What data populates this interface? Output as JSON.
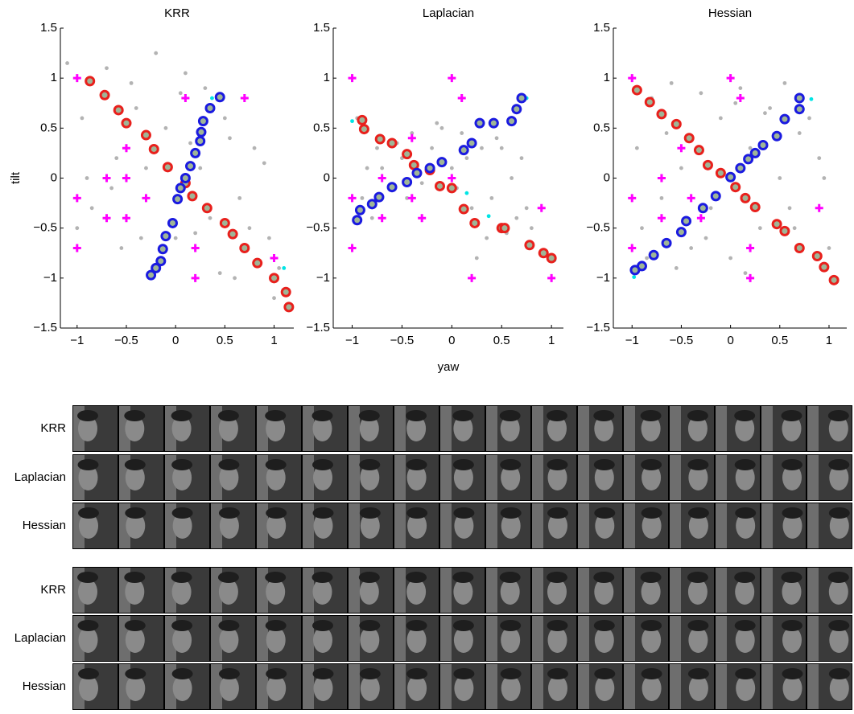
{
  "chart_data": [
    {
      "type": "scatter",
      "title": "KRR",
      "ylabel": "tilt",
      "xlim": [
        -1.17,
        1.2
      ],
      "ylim": [
        -1.5,
        1.5
      ],
      "xticks": [
        {
          "value": -1,
          "label": "−1"
        },
        {
          "value": -0.5,
          "label": "−0.5"
        },
        0,
        0.5,
        1
      ],
      "yticks": [
        {
          "value": -1.5,
          "label": "−1.5"
        },
        {
          "value": -1,
          "label": "−1"
        },
        {
          "value": -0.5,
          "label": "−0.5"
        },
        0,
        0.5,
        1,
        1.5
      ],
      "series": [
        {
          "marker": "dot",
          "color": "#b3b3b3",
          "x": [
            -1.1,
            -0.95,
            -0.85,
            -0.7,
            -0.6,
            -0.45,
            -0.35,
            -0.2,
            -0.1,
            0.0,
            0.1,
            0.25,
            0.35,
            0.5,
            0.65,
            0.8,
            0.95,
            1.05,
            -0.9,
            -0.65,
            -0.4,
            -0.15,
            0.05,
            0.3,
            0.55,
            0.75,
            0.9,
            -1.0,
            -0.3,
            0.2,
            0.6,
            1.0,
            -0.55,
            0.15,
            0.45
          ],
          "values": [
            1.15,
            0.6,
            -0.3,
            1.1,
            0.2,
            0.95,
            -0.6,
            1.25,
            0.5,
            -0.6,
            1.05,
            0.1,
            -0.4,
            0.6,
            -0.2,
            0.3,
            -0.6,
            -0.9,
            0.0,
            -0.1,
            0.7,
            -0.85,
            0.85,
            0.9,
            0.4,
            -0.5,
            0.15,
            -0.5,
            0.1,
            -0.55,
            -1.0,
            -1.2,
            -0.7,
            0.35,
            -0.95
          ]
        },
        {
          "marker": "plus",
          "color": "#ff00ff",
          "x": [
            -1,
            0.1,
            0.7,
            -0.5,
            -1,
            -0.3,
            -0.5,
            -0.7,
            -0.7,
            -0.5,
            -1,
            0.2,
            0.2,
            1
          ],
          "values": [
            1,
            0.8,
            0.8,
            0.3,
            -0.2,
            -0.2,
            0,
            0,
            -0.4,
            -0.4,
            -0.7,
            -0.7,
            -1,
            -0.8
          ]
        },
        {
          "marker": "dot",
          "color": "#00e5e5",
          "x": [
            0.37,
            1.1
          ],
          "values": [
            0.8,
            -0.9
          ]
        },
        {
          "marker": "circle",
          "color": "#e8201c",
          "x": [
            -0.87,
            -0.72,
            -0.58,
            -0.5,
            -0.3,
            -0.22,
            -0.08,
            0.1,
            0.17,
            0.32,
            0.5,
            0.58,
            0.7,
            0.83,
            1.0,
            1.12,
            1.15
          ],
          "values": [
            0.97,
            0.83,
            0.68,
            0.55,
            0.43,
            0.29,
            0.11,
            -0.05,
            -0.18,
            -0.3,
            -0.45,
            -0.56,
            -0.7,
            -0.85,
            -1.0,
            -1.14,
            -1.29
          ]
        },
        {
          "marker": "circle",
          "color": "#1a1ae0",
          "x": [
            0.45,
            0.35,
            0.28,
            0.26,
            0.25,
            0.2,
            0.15,
            0.1,
            0.05,
            0.02,
            -0.03,
            -0.1,
            -0.13,
            -0.15,
            -0.2,
            -0.25
          ],
          "values": [
            0.81,
            0.7,
            0.57,
            0.46,
            0.37,
            0.25,
            0.12,
            0.0,
            -0.1,
            -0.21,
            -0.45,
            -0.58,
            -0.71,
            -0.83,
            -0.9,
            -0.97
          ]
        }
      ]
    },
    {
      "type": "scatter",
      "title": "Laplacian",
      "xlabel": "yaw",
      "xlim": [
        -1.19,
        1.12
      ],
      "ylim": [
        -1.5,
        1.5
      ],
      "xticks": [
        {
          "value": -1,
          "label": "−1"
        },
        {
          "value": -0.5,
          "label": "−0.5"
        },
        0,
        0.5,
        1
      ],
      "yticks": [
        {
          "value": -1.5,
          "label": "−1.5"
        },
        {
          "value": -1,
          "label": "−1"
        },
        {
          "value": -0.5,
          "label": "−0.5"
        },
        0,
        0.5,
        1,
        1.5
      ],
      "series": [
        {
          "marker": "dot",
          "color": "#b3b3b3",
          "x": [
            -0.95,
            -0.9,
            -0.85,
            -0.75,
            -0.6,
            -0.5,
            -0.4,
            -0.3,
            -0.2,
            -0.1,
            0.0,
            0.1,
            0.2,
            0.3,
            0.4,
            0.5,
            0.6,
            0.7,
            0.75,
            0.8,
            -0.7,
            -0.45,
            -0.15,
            0.15,
            0.45,
            0.65,
            -0.8,
            0.05,
            0.35,
            0.55,
            0.25,
            -0.55
          ],
          "values": [
            0.6,
            -0.2,
            0.1,
            0.3,
            -0.1,
            0.2,
            0.45,
            -0.05,
            0.3,
            0.5,
            0.1,
            0.45,
            -0.3,
            0.3,
            -0.2,
            0.3,
            0.0,
            0.2,
            -0.3,
            -0.5,
            0.1,
            -0.2,
            0.55,
            0.2,
            0.4,
            -0.4,
            -0.4,
            -0.1,
            -0.6,
            -0.55,
            -0.8,
            0.35
          ]
        },
        {
          "marker": "plus",
          "color": "#ff00ff",
          "x": [
            -1,
            0,
            0.1,
            -0.4,
            -0.7,
            0,
            -0.4,
            -1,
            -0.7,
            -0.3,
            -1,
            0.2,
            1,
            0.9
          ],
          "values": [
            1,
            1,
            0.8,
            0.4,
            0,
            0,
            -0.2,
            -0.2,
            -0.4,
            -0.4,
            -0.7,
            -1,
            -1,
            -0.3
          ]
        },
        {
          "marker": "dot",
          "color": "#00e5e5",
          "x": [
            -1.0,
            0.15,
            0.37,
            0.75,
            1.03
          ],
          "values": [
            0.57,
            -0.15,
            -0.38,
            0.8,
            -0.82
          ]
        },
        {
          "marker": "circle",
          "color": "#e8201c",
          "x": [
            -0.9,
            -0.88,
            -0.72,
            -0.6,
            -0.45,
            -0.38,
            -0.22,
            -0.12,
            0.0,
            0.12,
            0.23,
            0.5,
            0.53,
            0.78,
            0.92,
            1.0
          ],
          "values": [
            0.58,
            0.49,
            0.39,
            0.35,
            0.24,
            0.13,
            0.08,
            -0.08,
            -0.1,
            -0.31,
            -0.45,
            -0.5,
            -0.5,
            -0.67,
            -0.75,
            -0.8
          ]
        },
        {
          "marker": "circle",
          "color": "#1a1ae0",
          "x": [
            0.7,
            0.65,
            0.6,
            0.42,
            0.28,
            0.2,
            0.12,
            -0.1,
            -0.22,
            -0.35,
            -0.45,
            -0.6,
            -0.73,
            -0.8,
            -0.92,
            -0.95
          ],
          "values": [
            0.8,
            0.69,
            0.57,
            0.55,
            0.55,
            0.35,
            0.28,
            0.16,
            0.1,
            0.05,
            -0.04,
            -0.09,
            -0.19,
            -0.26,
            -0.32,
            -0.42
          ]
        }
      ]
    },
    {
      "type": "scatter",
      "title": "Hessian",
      "xlim": [
        -1.19,
        1.18
      ],
      "ylim": [
        -1.5,
        1.5
      ],
      "xticks": [
        {
          "value": -1,
          "label": "−1"
        },
        {
          "value": -0.5,
          "label": "−0.5"
        },
        0,
        0.5,
        1
      ],
      "yticks": [
        {
          "value": -1.5,
          "label": "−1.5"
        },
        {
          "value": -1,
          "label": "−1"
        },
        {
          "value": -0.5,
          "label": "−0.5"
        },
        0,
        0.5,
        1,
        1.5
      ],
      "series": [
        {
          "marker": "dot",
          "color": "#b3b3b3",
          "x": [
            -1.0,
            -0.95,
            -0.9,
            -0.8,
            -0.7,
            -0.6,
            -0.5,
            -0.4,
            -0.3,
            -0.2,
            -0.1,
            0.0,
            0.1,
            0.2,
            0.3,
            0.4,
            0.5,
            0.6,
            0.7,
            0.8,
            0.9,
            1.0,
            -0.85,
            -0.55,
            -0.25,
            0.05,
            0.35,
            0.65,
            0.95,
            -0.65,
            0.15,
            0.55
          ],
          "values": [
            1.0,
            0.3,
            -0.5,
            0.8,
            -0.2,
            0.95,
            0.1,
            -0.7,
            0.85,
            -0.3,
            0.6,
            -0.8,
            0.9,
            0.3,
            -0.5,
            0.7,
            0.0,
            -0.3,
            0.45,
            0.6,
            0.2,
            -0.7,
            -0.8,
            -0.9,
            -0.6,
            0.75,
            0.65,
            -0.5,
            0.0,
            0.45,
            -0.95,
            0.95
          ]
        },
        {
          "marker": "plus",
          "color": "#ff00ff",
          "x": [
            -1,
            0,
            0.1,
            -0.5,
            -0.7,
            -0.7,
            -0.4,
            -1,
            -0.7,
            -0.3,
            -1,
            0.2,
            0.2,
            0.9
          ],
          "values": [
            1,
            1,
            0.8,
            0.3,
            0,
            -0.4,
            -0.2,
            -0.2,
            0,
            -0.4,
            -0.7,
            -0.7,
            -1,
            -0.3
          ]
        },
        {
          "marker": "dot",
          "color": "#00e5e5",
          "x": [
            0.82,
            -0.98
          ],
          "values": [
            0.79,
            -0.99
          ]
        },
        {
          "marker": "circle",
          "color": "#e8201c",
          "x": [
            -0.95,
            -0.82,
            -0.7,
            -0.55,
            -0.42,
            -0.32,
            -0.23,
            -0.1,
            0.05,
            0.15,
            0.25,
            0.47,
            0.55,
            0.7,
            0.88,
            0.95,
            1.05
          ],
          "values": [
            0.88,
            0.76,
            0.64,
            0.54,
            0.4,
            0.28,
            0.13,
            0.05,
            -0.09,
            -0.2,
            -0.29,
            -0.46,
            -0.53,
            -0.7,
            -0.78,
            -0.89,
            -1.02
          ]
        },
        {
          "marker": "circle",
          "color": "#1a1ae0",
          "x": [
            0.7,
            0.7,
            0.55,
            0.47,
            0.33,
            0.25,
            0.18,
            0.1,
            0.0,
            -0.15,
            -0.28,
            -0.45,
            -0.5,
            -0.65,
            -0.78,
            -0.9,
            -0.97
          ],
          "values": [
            0.8,
            0.69,
            0.59,
            0.42,
            0.33,
            0.25,
            0.19,
            0.1,
            0.01,
            -0.18,
            -0.3,
            -0.43,
            -0.54,
            -0.65,
            -0.77,
            -0.88,
            -0.92
          ]
        }
      ]
    }
  ],
  "image_grids": [
    {
      "rows": [
        "KRR",
        "Laplacian",
        "Hessian"
      ]
    },
    {
      "rows": [
        "KRR",
        "Laplacian",
        "Hessian"
      ]
    }
  ]
}
